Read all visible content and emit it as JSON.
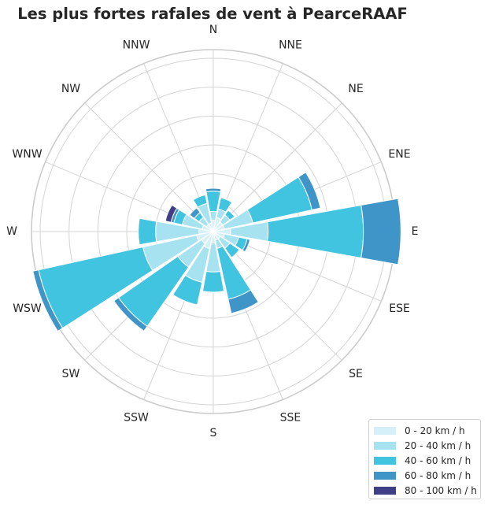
{
  "chart_data": {
    "type": "windrose",
    "title": "Les plus fortes rafales de vent à PearceRAAF",
    "directions": [
      "N",
      "NNE",
      "NE",
      "ENE",
      "E",
      "ESE",
      "SE",
      "SSE",
      "S",
      "SSW",
      "SW",
      "WSW",
      "W",
      "WNW",
      "NW",
      "NNW"
    ],
    "series": [
      {
        "name": "0 - 20 km / h",
        "color": "#d5f0f8",
        "values": [
          0.4,
          0.5,
          0.4,
          0.4,
          0.6,
          0.4,
          0.3,
          0.3,
          0.4,
          0.6,
          0.5,
          0.6,
          0.5,
          0.4,
          0.3,
          0.3
        ]
      },
      {
        "name": "20 - 40 km / h",
        "color": "#a6e2f0",
        "values": [
          0.3,
          0.3,
          0.3,
          1.0,
          1.3,
          0.5,
          0.4,
          0.3,
          1.0,
          1.2,
          1.0,
          1.9,
          1.5,
          0.7,
          0.3,
          0.7
        ]
      },
      {
        "name": "40 - 60 km / h",
        "color": "#41c4e0",
        "values": [
          0.7,
          0.4,
          0.2,
          2.1,
          3.3,
          0.3,
          0.4,
          1.8,
          0.7,
          0.8,
          2.5,
          3.7,
          0.6,
          0.3,
          0.2,
          0.3
        ]
      },
      {
        "name": "60 - 80 km / h",
        "color": "#3f95c8",
        "values": [
          0.1,
          0.0,
          0.0,
          0.3,
          1.3,
          0.1,
          0.0,
          0.5,
          0.0,
          0.0,
          0.2,
          0.2,
          0.0,
          0.1,
          0.2,
          0.0
        ]
      },
      {
        "name": "80 - 100 km / h",
        "color": "#3f3f88",
        "values": [
          0.0,
          0.0,
          0.0,
          0.0,
          0.0,
          0.0,
          0.0,
          0.0,
          0.0,
          0.0,
          0.0,
          0.0,
          0.0,
          0.2,
          0.0,
          0.0
        ]
      }
    ],
    "rmax": 6.3,
    "ring_values": [
      1,
      2,
      3,
      4,
      5,
      6
    ],
    "legend": "bottom-right",
    "grid": true
  }
}
